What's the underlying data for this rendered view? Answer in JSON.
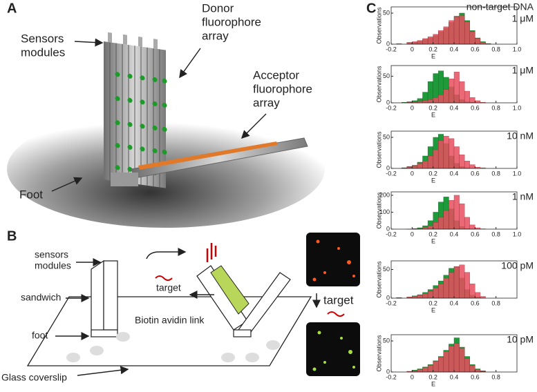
{
  "figure": {
    "panel_a": {
      "label": "A",
      "sensors": [
        "Sensors",
        "modules"
      ],
      "donor": [
        "Donor",
        "fluorophore",
        "array"
      ],
      "acceptor": [
        "Acceptor",
        "fluorophore",
        "array"
      ],
      "foot": "Foot"
    },
    "panel_b": {
      "label": "B",
      "sensors": [
        "sensors",
        "modules"
      ],
      "sandwich": "sandwich",
      "foot": "foot",
      "target_small": "target",
      "link": "Biotin avidin link",
      "target_big": "target",
      "coverslip": "Glass coverslip"
    },
    "panel_c": {
      "label": "C"
    }
  },
  "chart_data": [
    {
      "type": "histogram",
      "title": "non-target DNA",
      "annotation": "1 μM",
      "xlabel": "E",
      "ylabel": "Observations",
      "bins": [
        -0.2,
        -0.15,
        -0.1,
        -0.05,
        0,
        0.05,
        0.1,
        0.15,
        0.2,
        0.25,
        0.3,
        0.35,
        0.4,
        0.45,
        0.5,
        0.55,
        0.6,
        0.65,
        0.7,
        0.75,
        0.8
      ],
      "series": [
        {
          "color": "#1f9a3a",
          "values": [
            0,
            0,
            0,
            2,
            3,
            5,
            8,
            10,
            14,
            20,
            26,
            35,
            45,
            50,
            38,
            22,
            10,
            4,
            1,
            0
          ]
        },
        {
          "color": "#e8505f",
          "values": [
            0,
            1,
            0,
            3,
            4,
            6,
            9,
            12,
            16,
            22,
            28,
            38,
            44,
            46,
            36,
            20,
            9,
            3,
            1,
            0
          ]
        }
      ],
      "xlim": [
        -0.2,
        1.0
      ],
      "xticks": [
        -0.2,
        0,
        0.2,
        0.4,
        0.6,
        0.8,
        {
          "value": 1,
          "label": "1.0"
        }
      ],
      "ylim": [
        0,
        60
      ],
      "yticks": [
        0,
        50
      ]
    },
    {
      "type": "histogram",
      "annotation": "1 μM",
      "xlabel": "E",
      "ylabel": "Observations",
      "bins": [
        -0.2,
        -0.15,
        -0.1,
        -0.05,
        0,
        0.05,
        0.1,
        0.15,
        0.2,
        0.25,
        0.3,
        0.35,
        0.4,
        0.45,
        0.5,
        0.55,
        0.6,
        0.65,
        0.7,
        0.75,
        0.8
      ],
      "series": [
        {
          "color": "#1f9a3a",
          "values": [
            0,
            0,
            1,
            2,
            4,
            8,
            20,
            40,
            55,
            60,
            48,
            30,
            15,
            6,
            2,
            1,
            0,
            0,
            0,
            0
          ]
        },
        {
          "color": "#e8505f",
          "values": [
            0,
            0,
            0,
            1,
            2,
            3,
            4,
            6,
            10,
            15,
            25,
            45,
            58,
            40,
            22,
            10,
            4,
            1,
            0,
            0
          ]
        }
      ],
      "xlim": [
        -0.2,
        1.0
      ],
      "xticks": [
        -0.2,
        0,
        0.2,
        0.4,
        0.6,
        0.8,
        {
          "value": 1,
          "label": "1.0"
        }
      ],
      "ylim": [
        0,
        70
      ],
      "yticks": [
        0,
        50
      ]
    },
    {
      "type": "histogram",
      "annotation": "10 nM",
      "xlabel": "E",
      "ylabel": "Observations",
      "bins": [
        -0.2,
        -0.15,
        -0.1,
        -0.05,
        0,
        0.05,
        0.1,
        0.15,
        0.2,
        0.25,
        0.3,
        0.35,
        0.4,
        0.45,
        0.5,
        0.55,
        0.6,
        0.65,
        0.7,
        0.75,
        0.8
      ],
      "series": [
        {
          "color": "#1f9a3a",
          "values": [
            0,
            0,
            1,
            3,
            5,
            10,
            20,
            35,
            50,
            55,
            40,
            20,
            8,
            3,
            1,
            0,
            0,
            0,
            0,
            0
          ]
        },
        {
          "color": "#e8505f",
          "values": [
            0,
            0,
            1,
            2,
            4,
            8,
            12,
            20,
            30,
            45,
            52,
            48,
            35,
            22,
            12,
            6,
            2,
            1,
            0,
            0
          ]
        }
      ],
      "xlim": [
        -0.2,
        1.0
      ],
      "xticks": [
        -0.2,
        0,
        0.2,
        0.4,
        0.6,
        0.8,
        {
          "value": 1,
          "label": "1.0"
        }
      ],
      "ylim": [
        0,
        60
      ],
      "yticks": [
        0,
        50
      ]
    },
    {
      "type": "histogram",
      "annotation": "1 nM",
      "xlabel": "E",
      "ylabel": "Observations",
      "bins": [
        -0.2,
        -0.15,
        -0.1,
        -0.05,
        0,
        0.05,
        0.1,
        0.15,
        0.2,
        0.25,
        0.3,
        0.35,
        0.4,
        0.45,
        0.5,
        0.55,
        0.6,
        0.65,
        0.7,
        0.75,
        0.8
      ],
      "series": [
        {
          "color": "#1f9a3a",
          "values": [
            0,
            0,
            0,
            1,
            3,
            8,
            20,
            50,
            100,
            160,
            190,
            120,
            50,
            15,
            4,
            1,
            0,
            0,
            0,
            0
          ]
        },
        {
          "color": "#e8505f",
          "values": [
            0,
            0,
            0,
            1,
            2,
            4,
            10,
            20,
            40,
            70,
            110,
            170,
            200,
            150,
            70,
            25,
            8,
            2,
            0,
            0
          ]
        }
      ],
      "xlim": [
        -0.2,
        1.0
      ],
      "xticks": [
        -0.2,
        0,
        0.2,
        0.4,
        0.6,
        0.8,
        {
          "value": 1,
          "label": "1.0"
        }
      ],
      "ylim": [
        0,
        220
      ],
      "yticks": [
        0,
        100,
        200
      ]
    },
    {
      "type": "histogram",
      "annotation": "100 pM",
      "xlabel": "E",
      "ylabel": "Observations",
      "bins": [
        -0.2,
        -0.15,
        -0.1,
        -0.05,
        0,
        0.05,
        0.1,
        0.15,
        0.2,
        0.25,
        0.3,
        0.35,
        0.4,
        0.45,
        0.5,
        0.55,
        0.6,
        0.65,
        0.7,
        0.75,
        0.8
      ],
      "series": [
        {
          "color": "#1f9a3a",
          "values": [
            0,
            1,
            0,
            2,
            4,
            6,
            10,
            15,
            22,
            30,
            40,
            52,
            55,
            35,
            15,
            5,
            2,
            0,
            0,
            0
          ]
        },
        {
          "color": "#e8505f",
          "values": [
            0,
            1,
            0,
            2,
            3,
            5,
            8,
            12,
            18,
            25,
            35,
            45,
            55,
            58,
            45,
            25,
            10,
            3,
            0,
            0
          ]
        }
      ],
      "xlim": [
        -0.2,
        1.0
      ],
      "xticks": [
        -0.2,
        0.2,
        0.4,
        0.6,
        0.8
      ],
      "ylim": [
        0,
        65
      ],
      "yticks": [
        0,
        50
      ]
    },
    {
      "type": "histogram",
      "annotation": "10 pM",
      "xlabel": "E",
      "ylabel": "Observations",
      "bins": [
        -0.2,
        -0.15,
        -0.1,
        -0.05,
        0,
        0.05,
        0.1,
        0.15,
        0.2,
        0.25,
        0.3,
        0.35,
        0.4,
        0.45,
        0.5,
        0.55,
        0.6,
        0.65,
        0.7,
        0.75,
        0.8
      ],
      "series": [
        {
          "color": "#1f9a3a",
          "values": [
            0,
            0,
            0,
            1,
            3,
            5,
            8,
            12,
            18,
            25,
            35,
            45,
            55,
            40,
            25,
            12,
            5,
            2,
            0,
            0
          ]
        },
        {
          "color": "#e8505f",
          "values": [
            0,
            0,
            0,
            1,
            2,
            4,
            7,
            11,
            17,
            24,
            33,
            42,
            46,
            38,
            22,
            10,
            4,
            1,
            0,
            0
          ]
        }
      ],
      "xlim": [
        -0.2,
        1.0
      ],
      "xticks": [
        -0.2,
        0,
        0.2,
        0.4,
        0.6,
        0.8
      ],
      "ylim": [
        0,
        60
      ],
      "yticks": [
        0,
        50
      ]
    }
  ]
}
